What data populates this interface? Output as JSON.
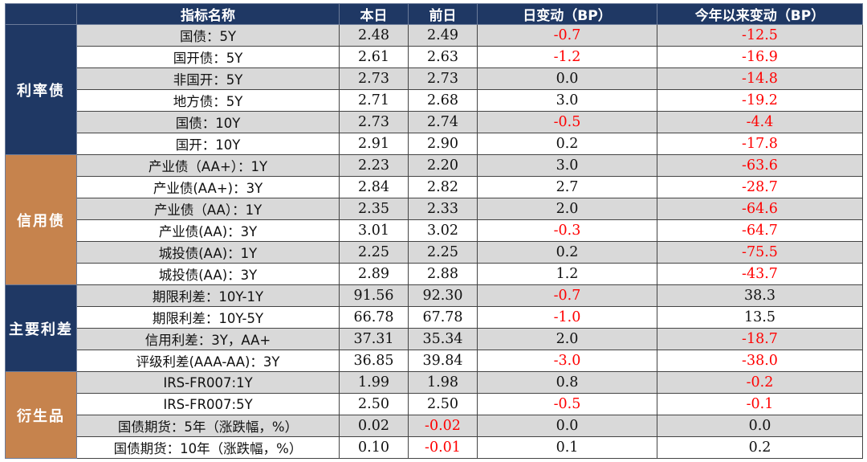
{
  "header": {
    "name": "指标名称",
    "today": "本日",
    "prev": "前日",
    "day_change": "日变动（BP）",
    "ytd_change": "今年以来变动（BP）"
  },
  "groups": [
    {
      "label": "利率债",
      "rows": [
        {
          "name": "国债：5Y",
          "today": "2.48",
          "prev": "2.49",
          "day": "-0.7",
          "ytd": "-12.5"
        },
        {
          "name": "国开债：5Y",
          "today": "2.61",
          "prev": "2.63",
          "day": "-1.2",
          "ytd": "-16.9"
        },
        {
          "name": "非国开：5Y",
          "today": "2.73",
          "prev": "2.73",
          "day": "0.0",
          "ytd": "-14.8"
        },
        {
          "name": "地方债：5Y",
          "today": "2.71",
          "prev": "2.68",
          "day": "3.0",
          "ytd": "-19.2"
        },
        {
          "name": "国债：10Y",
          "today": "2.73",
          "prev": "2.74",
          "day": "-0.5",
          "ytd": "-4.4"
        },
        {
          "name": "国开：10Y",
          "today": "2.91",
          "prev": "2.90",
          "day": "0.2",
          "ytd": "-17.8"
        }
      ]
    },
    {
      "label": "信用债",
      "rows": [
        {
          "name": "产业债（AA+）：1Y",
          "today": "2.23",
          "prev": "2.20",
          "day": "3.0",
          "ytd": "-63.6"
        },
        {
          "name": "产业债(AA+)：3Y",
          "today": "2.84",
          "prev": "2.82",
          "day": "2.7",
          "ytd": "-28.7"
        },
        {
          "name": "产业债（AA）：1Y",
          "today": "2.35",
          "prev": "2.33",
          "day": "2.0",
          "ytd": "-64.6"
        },
        {
          "name": "产业债(AA)：3Y",
          "today": "3.01",
          "prev": "3.02",
          "day": "-0.3",
          "ytd": "-64.7"
        },
        {
          "name": "城投债(AA)：1Y",
          "today": "2.25",
          "prev": "2.25",
          "day": "0.2",
          "ytd": "-75.5"
        },
        {
          "name": "城投债(AA)：3Y",
          "today": "2.89",
          "prev": "2.88",
          "day": "1.2",
          "ytd": "-43.7"
        }
      ]
    },
    {
      "label": "主要利差",
      "rows": [
        {
          "name": "期限利差：10Y-1Y",
          "today": "91.56",
          "prev": "92.30",
          "day": "-0.7",
          "ytd": "38.3"
        },
        {
          "name": "期限利差：10Y-5Y",
          "today": "66.78",
          "prev": "67.78",
          "day": "-1.0",
          "ytd": "13.5"
        },
        {
          "name": "信用利差：3Y，AA+",
          "today": "37.31",
          "prev": "35.34",
          "day": "2.0",
          "ytd": "-18.7"
        },
        {
          "name": "评级利差(AAA-AA)：3Y",
          "today": "36.85",
          "prev": "39.84",
          "day": "-3.0",
          "ytd": "-38.0"
        }
      ]
    },
    {
      "label": "衍生品",
      "rows": [
        {
          "name": "IRS-FR007:1Y",
          "today": "1.99",
          "prev": "1.98",
          "day": "0.8",
          "ytd": "-0.2"
        },
        {
          "name": "IRS-FR007:5Y",
          "today": "2.50",
          "prev": "2.50",
          "day": "-0.5",
          "ytd": "-0.1"
        },
        {
          "name": "国债期货：5年（涨跌幅，%）",
          "today": "0.02",
          "prev": "-0.02",
          "day": "0.0",
          "ytd": "0.0"
        },
        {
          "name": "国债期货：10年（涨跌幅，%）",
          "today": "0.10",
          "prev": "-0.01",
          "day": "0.1",
          "ytd": "0.2"
        }
      ]
    }
  ],
  "colors": {
    "header_bg": "#1f3864",
    "group_blue": "#1f3864",
    "group_orange": "#c6834d",
    "negative": "#ff0000",
    "stripe": "#d9d9d9"
  }
}
